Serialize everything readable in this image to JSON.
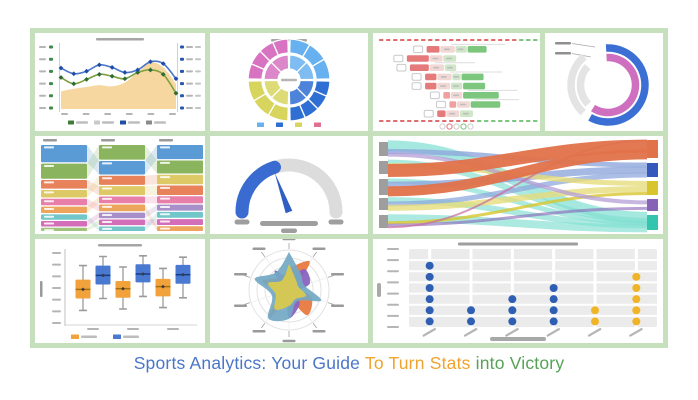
{
  "title": {
    "parts": [
      {
        "text": "Sports Analytics: Your Guide ",
        "color": "#4a76c9"
      },
      {
        "text": "To Turn Stats ",
        "color": "#f0a42f"
      },
      {
        "text": "into Victory",
        "color": "#55a357"
      }
    ]
  },
  "frame": {
    "background": "#ffffff",
    "grid_color": "#c6dfbd",
    "tile_color": "#ffffff"
  },
  "chart_data": [
    {
      "name": "line-area-chart",
      "type": "line",
      "placeholder_labels": true,
      "x_points": 10,
      "area": {
        "color": "#f6d59b",
        "values": [
          28,
          32,
          35,
          38,
          36,
          42,
          58,
          74,
          66,
          40
        ]
      },
      "series": [
        {
          "name": "green-series",
          "color": "#7d9f3d",
          "marker_color": "#2d6b35",
          "values": [
            50,
            40,
            47,
            55,
            52,
            48,
            58,
            62,
            55,
            25
          ]
        },
        {
          "name": "blue-series",
          "color": "#4b76c9",
          "marker_color": "#1e4da8",
          "values": [
            65,
            56,
            60,
            70,
            66,
            58,
            62,
            75,
            72,
            48
          ]
        }
      ],
      "left_axis_tick_color": "#3f8a46",
      "right_axis_tick_color": "#2456b0",
      "legend_swatches": [
        "#3f7d36",
        "#c9c9c9",
        "#1f4fa0",
        "#8a8a8a"
      ],
      "y_ticks": 6,
      "x_ticks": 6
    },
    {
      "name": "sunburst-chart",
      "type": "sunburst",
      "placeholder_labels": true,
      "quadrants": [
        {
          "position": "top-right",
          "color": "#68b1f0",
          "outer_segments": 3,
          "inner_segments": 2
        },
        {
          "position": "bottom-right",
          "color": "#2f6fd3",
          "outer_segments": 4,
          "inner_segments": 2
        },
        {
          "position": "bottom-left",
          "color": "#d8d55f",
          "outer_segments": 3,
          "inner_segments": 2
        },
        {
          "position": "top-left",
          "color": "#d873c2",
          "outer_segments": 4,
          "inner_segments": 2
        }
      ],
      "legend_swatches": [
        "#68b1f0",
        "#2f6fd3",
        "#d8d55f",
        "#e0708e"
      ]
    },
    {
      "name": "timeline-bars-chart",
      "type": "gantt",
      "placeholder_labels": true,
      "colors": {
        "red": "#e57a7a",
        "pink": "#efa0a0",
        "pale": "#f2d8d4",
        "pale_green": "#cfe6c8",
        "green": "#7dc67e"
      },
      "rows": [
        {
          "x": 30,
          "segments": [
            [
              "red",
              9
            ],
            [
              "pale",
              10
            ],
            [
              "pale_green",
              8
            ],
            [
              "green",
              13
            ]
          ]
        },
        {
          "x": 17,
          "segments": [
            [
              "red",
              15
            ],
            [
              "pale",
              9
            ],
            [
              "pale_green",
              9
            ]
          ]
        },
        {
          "x": 19,
          "segments": [
            [
              "red",
              13
            ],
            [
              "pale",
              10
            ],
            [
              "pale_green",
              8
            ]
          ]
        },
        {
          "x": 29,
          "segments": [
            [
              "red",
              8
            ],
            [
              "pale",
              10
            ],
            [
              "pale_green",
              6
            ],
            [
              "green",
              15
            ]
          ]
        },
        {
          "x": 29,
          "segments": [
            [
              "red",
              8
            ],
            [
              "pale",
              9
            ],
            [
              "pale_green",
              8
            ],
            [
              "green",
              15
            ]
          ]
        },
        {
          "x": 41,
          "segments": [
            [
              "pink",
              5
            ],
            [
              "pale",
              8
            ],
            [
              "green",
              24
            ]
          ]
        },
        {
          "x": 45,
          "segments": [
            [
              "pink",
              5
            ],
            [
              "pale",
              9
            ],
            [
              "green",
              20
            ]
          ]
        },
        {
          "x": 37,
          "segments": [
            [
              "red",
              6
            ],
            [
              "pale",
              9
            ],
            [
              "pale_green",
              9
            ]
          ]
        }
      ],
      "top_dash_color": "#e06c6c",
      "bottom_dash_colors": [
        "#e06c6c",
        "#7dc67e"
      ],
      "footer_circles": 5
    },
    {
      "name": "progress-rings-chart",
      "type": "rings",
      "placeholder_labels": true,
      "track_color": "#e4e4e4",
      "labels": 2,
      "rings": [
        {
          "color": "#3b6fd4",
          "radius": 37,
          "start": -3,
          "sweep": 212,
          "track_start": 222,
          "track_end": 320
        },
        {
          "color": "#cf6fc0",
          "radius": 27.5,
          "start": -3,
          "sweep": 216,
          "track_start": 226,
          "track_end": 312
        }
      ]
    },
    {
      "name": "alluvial-chart",
      "type": "alluvial",
      "placeholder_labels": true,
      "columns": [
        {
          "segments": [
            [
              "#5b9bd5",
              16
            ],
            [
              "#8ab45e",
              14
            ],
            [
              "#e8825a",
              8
            ],
            [
              "#ddca66",
              7
            ],
            [
              "#e77fa8",
              6
            ],
            [
              "#eda45c",
              6
            ],
            [
              "#72c5c9",
              5
            ],
            [
              "#d36fb8",
              5
            ],
            [
              "#9fc37a",
              3
            ]
          ]
        },
        {
          "segments": [
            [
              "#8ab45e",
              13
            ],
            [
              "#5b9bd5",
              12
            ],
            [
              "#e8825a",
              8
            ],
            [
              "#ddca66",
              8
            ],
            [
              "#e77fa8",
              6
            ],
            [
              "#eda45c",
              6
            ],
            [
              "#a98fc9",
              5
            ],
            [
              "#d36fb8",
              5
            ],
            [
              "#72c5c9",
              4
            ]
          ]
        },
        {
          "segments": [
            [
              "#5b9bd5",
              12
            ],
            [
              "#8ab45e",
              11
            ],
            [
              "#ddca66",
              8
            ],
            [
              "#e8825a",
              8
            ],
            [
              "#e77fa8",
              6
            ],
            [
              "#a98fc9",
              5
            ],
            [
              "#72c5c9",
              5
            ],
            [
              "#d36fb8",
              5
            ],
            [
              "#eda45c",
              4
            ]
          ]
        }
      ],
      "links": [
        [
          [
            0,
            1
          ],
          [
            1,
            0
          ],
          [
            2,
            3
          ],
          [
            3,
            2
          ],
          [
            4,
            5
          ],
          [
            5,
            4
          ],
          [
            6,
            8
          ],
          [
            7,
            6
          ],
          [
            8,
            7
          ]
        ],
        [
          [
            0,
            1
          ],
          [
            1,
            0
          ],
          [
            2,
            2
          ],
          [
            3,
            3
          ],
          [
            4,
            4
          ],
          [
            5,
            8
          ],
          [
            6,
            5
          ],
          [
            7,
            7
          ],
          [
            8,
            6
          ]
        ]
      ]
    },
    {
      "name": "gauge-chart",
      "type": "gauge",
      "track_color": "#dcdcdc",
      "value_color": "#3a6bd0",
      "value_sweep": 72,
      "needle_angle": -20,
      "needle_color": "#2f5ec4",
      "pill_color": "#9e9e9e"
    },
    {
      "name": "sankey-chart",
      "type": "sankey",
      "source_color": "#9e9e9e",
      "source_nodes": [
        {
          "y": 6,
          "h": 14
        },
        {
          "y": 25,
          "h": 13
        },
        {
          "y": 43,
          "h": 16
        },
        {
          "y": 62,
          "h": 12
        },
        {
          "y": 79,
          "h": 13
        }
      ],
      "target_nodes": [
        {
          "y": 4,
          "h": 18,
          "color": "#e2724a"
        },
        {
          "y": 27,
          "h": 14,
          "color": "#3558bb"
        },
        {
          "y": 45,
          "h": 14,
          "color": "#d8c52e"
        },
        {
          "y": 63,
          "h": 12,
          "color": "#8763b8"
        },
        {
          "y": 79,
          "h": 15,
          "color": "#35c4ae"
        }
      ],
      "flows": [
        {
          "from": 0,
          "to": 4,
          "color": "#7fded1",
          "width": 11,
          "opacity": 0.7
        },
        {
          "from": 1,
          "to": 4,
          "color": "#7fded1",
          "width": 6,
          "opacity": 0.65
        },
        {
          "from": 2,
          "to": 4,
          "color": "#7fded1",
          "width": 5,
          "opacity": 0.65
        },
        {
          "from": 3,
          "to": 4,
          "color": "#7fded1",
          "width": 6,
          "opacity": 0.65
        },
        {
          "from": 4,
          "to": 4,
          "color": "#7fded1",
          "width": 8,
          "opacity": 0.65
        },
        {
          "from": 0,
          "to": 1,
          "color": "#8fa8dc",
          "width": 5,
          "opacity": 0.8
        },
        {
          "from": 2,
          "to": 1,
          "color": "#8fa8dc",
          "width": 7,
          "opacity": 0.8
        },
        {
          "from": 3,
          "to": 1,
          "color": "#8fa8dc",
          "width": 5,
          "opacity": 0.75
        },
        {
          "from": 1,
          "to": 2,
          "color": "#e6dc7a",
          "width": 5,
          "opacity": 0.8
        },
        {
          "from": 3,
          "to": 2,
          "color": "#e6dc7a",
          "width": 6,
          "opacity": 0.8
        },
        {
          "from": 4,
          "to": 2,
          "color": "#d8c52e",
          "width": 3,
          "opacity": 0.8
        },
        {
          "from": 0,
          "to": 3,
          "color": "#b39dd6",
          "width": 4,
          "opacity": 0.75
        },
        {
          "from": 4,
          "to": 3,
          "color": "#8763b8",
          "width": 3,
          "opacity": 0.6
        },
        {
          "from": 4,
          "to": 0,
          "color": "#c76a9e",
          "width": 2,
          "opacity": 0.7
        },
        {
          "from": 1,
          "to": 0,
          "color": "#e2724a",
          "width": 13,
          "opacity": 0.95
        },
        {
          "from": 2,
          "to": 0,
          "color": "#e2724a",
          "width": 10,
          "opacity": 0.95
        }
      ]
    },
    {
      "name": "box-plot-chart",
      "type": "box",
      "placeholder_labels": true,
      "series_colors": [
        "#f2a23a",
        "#4a79d1"
      ],
      "median_colors": [
        "#a86e12",
        "#123c8c"
      ],
      "whisker_color": "#9a9a9a",
      "groups": [
        {
          "orange": {
            "low": 18,
            "q1": 35,
            "median": 48,
            "q3": 62,
            "high": 82
          },
          "blue": {
            "low": 35,
            "q1": 55,
            "median": 68,
            "q3": 82,
            "high": 95
          }
        },
        {
          "orange": {
            "low": 20,
            "q1": 36,
            "median": 49,
            "q3": 60,
            "high": 80
          },
          "blue": {
            "low": 38,
            "q1": 58,
            "median": 70,
            "q3": 84,
            "high": 96
          }
        },
        {
          "orange": {
            "low": 22,
            "q1": 38,
            "median": 52,
            "q3": 63,
            "high": 78
          },
          "blue": {
            "low": 36,
            "q1": 56,
            "median": 69,
            "q3": 83,
            "high": 94
          }
        }
      ],
      "y_ticks": 7,
      "legend_swatches": [
        "#f2a23a",
        "#4a79d1"
      ]
    },
    {
      "name": "radar-chart",
      "type": "radar",
      "placeholder_labels": true,
      "axes": 10,
      "grid_rings": 5,
      "series": [
        {
          "color": "#e8793f",
          "opacity": 0.95,
          "values": [
            55,
            88,
            25,
            60,
            78,
            30,
            85,
            30,
            70,
            40
          ]
        },
        {
          "color": "#8a63c0",
          "opacity": 0.95,
          "values": [
            25,
            65,
            55,
            20,
            45,
            70,
            15,
            35,
            25,
            60
          ]
        },
        {
          "color": "#73a8c4",
          "opacity": 0.92,
          "values": [
            95,
            50,
            40,
            85,
            35,
            72,
            88,
            45,
            90,
            55
          ]
        },
        {
          "color": "#d9c94f",
          "opacity": 0.95,
          "values": [
            65,
            30,
            25,
            45,
            28,
            40,
            60,
            35,
            55,
            30
          ]
        }
      ]
    },
    {
      "name": "dot-matrix-chart",
      "type": "dots",
      "placeholder_labels": true,
      "plot_bg": "#ebebeb",
      "row_slots": 7,
      "dot_levels": 6,
      "y_ticks": 8,
      "columns": [
        {
          "color": "#2f5fb3",
          "count": 6
        },
        {
          "color": "#2f5fb3",
          "count": 2
        },
        {
          "color": "#2f5fb3",
          "count": 3
        },
        {
          "color": "#2f5fb3",
          "count": 4
        },
        {
          "color": "#f0b429",
          "count": 2
        },
        {
          "color": "#f0b429",
          "count": 5
        }
      ]
    }
  ]
}
